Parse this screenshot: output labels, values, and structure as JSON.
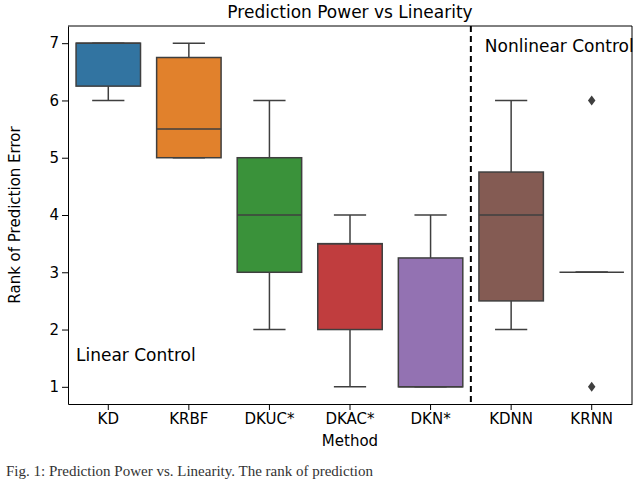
{
  "chart_data": {
    "type": "box",
    "title": "Prediction Power vs Linearity",
    "x_label": "Method",
    "y_label": "Rank of Prediction Error",
    "categories": [
      "KD",
      "KRBF",
      "DKUC*",
      "DKAC*",
      "DKN*",
      "KDNN",
      "KRNN"
    ],
    "min": [
      6,
      5,
      2,
      1,
      1,
      2,
      3
    ],
    "q1": [
      6.25,
      5,
      3,
      2,
      1,
      2.5,
      3
    ],
    "median": [
      7,
      5.5,
      4,
      3.5,
      1,
      4,
      3
    ],
    "q3": [
      7,
      6.75,
      5,
      3.5,
      3.25,
      4.75,
      3
    ],
    "max": [
      7,
      7,
      6,
      4,
      4,
      6,
      3
    ],
    "outliers": [
      [],
      [],
      [],
      [],
      [],
      [],
      [
        1,
        6
      ]
    ],
    "colors": [
      "#3274a1",
      "#e1812c",
      "#3a923a",
      "#c03d3e",
      "#9372b2",
      "#845b53",
      "#d684bd"
    ],
    "ylim": [
      0.7,
      7.3
    ],
    "yticks": [
      1,
      2,
      3,
      4,
      5,
      6,
      7
    ],
    "annotations": [
      "Linear Control",
      "Nonlinear Control"
    ],
    "caption": "Fig. 1: Prediction Power vs. Linearity. The rank of prediction"
  }
}
